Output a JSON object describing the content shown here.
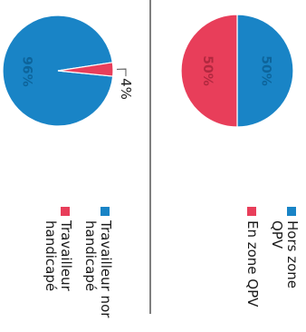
{
  "colors": {
    "blue": "#1984c6",
    "red": "#e83e5a",
    "line": "#555555",
    "text": "#1a1a1a"
  },
  "chart_data": [
    {
      "type": "pie",
      "series": [
        {
          "slices": [
            {
              "label": "Hors zone QPV",
              "value": 50,
              "display": "50%",
              "color": "#1984c6"
            },
            {
              "label": "En zone QPV",
              "value": 50,
              "display": "50%",
              "color": "#e83e5a"
            }
          ]
        }
      ],
      "legend": [
        {
          "lines": [
            "Hors zone",
            "QPV"
          ],
          "color": "#1984c6"
        },
        {
          "lines": [
            "En zone QPV"
          ],
          "color": "#e83e5a"
        }
      ],
      "legend_position": "right",
      "orientation": "rotated 90° clockwise"
    },
    {
      "type": "pie",
      "series": [
        {
          "slices": [
            {
              "label": "Travailleur non handicapé",
              "value": 96,
              "display": "96%",
              "color": "#1984c6"
            },
            {
              "label": "Travailleur handicapé",
              "value": 4,
              "display": "4%",
              "color": "#e83e5a"
            }
          ]
        }
      ],
      "legend": [
        {
          "lines": [
            "Travailleur nor",
            "handicapé"
          ],
          "color": "#1984c6"
        },
        {
          "lines": [
            "Travailleur",
            "handicapé"
          ],
          "color": "#e83e5a"
        }
      ],
      "legend_position": "right",
      "orientation": "rotated 90° clockwise"
    }
  ]
}
